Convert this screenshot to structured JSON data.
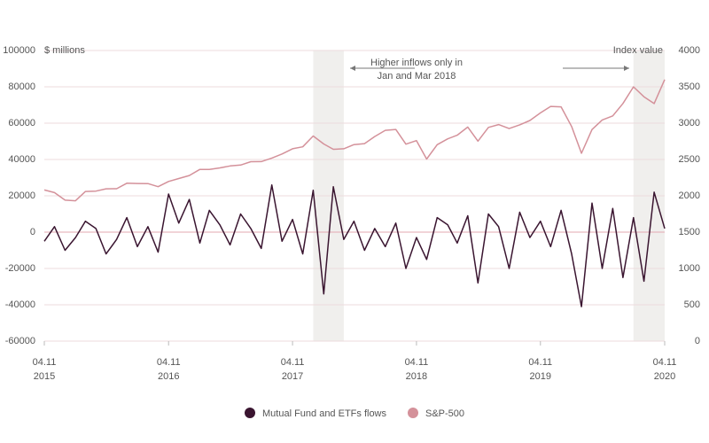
{
  "chart_data": {
    "type": "line",
    "y_axis_label": "$ millions",
    "y2_axis_label": "Index value",
    "annotation": "Higher inflows only in\nJan and Mar 2018",
    "x": [
      "2015-11-04",
      "2015-12-04",
      "2016-01-04",
      "2016-02-04",
      "2016-03-04",
      "2016-04-04",
      "2016-05-04",
      "2016-06-04",
      "2016-07-04",
      "2016-08-04",
      "2016-09-04",
      "2016-10-04",
      "2016-11-04",
      "2016-12-04",
      "2017-01-04",
      "2017-02-04",
      "2017-03-04",
      "2017-04-04",
      "2017-05-04",
      "2017-06-04",
      "2017-07-04",
      "2017-08-04",
      "2017-09-04",
      "2017-10-04",
      "2017-11-04",
      "2017-12-04",
      "2018-01-04",
      "2018-02-04",
      "2018-03-04",
      "2018-04-04",
      "2018-05-04",
      "2018-06-04",
      "2018-07-04",
      "2018-08-04",
      "2018-09-04",
      "2018-10-04",
      "2018-11-04",
      "2018-12-04",
      "2019-01-04",
      "2019-02-04",
      "2019-03-04",
      "2019-04-04",
      "2019-05-04",
      "2019-06-04",
      "2019-07-04",
      "2019-08-04",
      "2019-09-04",
      "2019-10-04",
      "2019-11-04",
      "2019-12-04",
      "2020-01-04",
      "2020-02-04",
      "2020-03-04",
      "2020-04-04",
      "2020-05-04",
      "2020-06-04",
      "2020-07-04",
      "2020-08-04",
      "2020-09-04",
      "2020-10-04",
      "2020-11-04"
    ],
    "series": [
      {
        "name": "Mutual Fund and ETFs flows",
        "color": "#3a1530",
        "values": [
          -5000,
          3000,
          -10000,
          -3000,
          6000,
          2000,
          -12000,
          -4000,
          8000,
          -8000,
          3000,
          -11000,
          21000,
          5000,
          18000,
          -6000,
          12000,
          4000,
          -7000,
          10000,
          2000,
          -9000,
          26000,
          -5000,
          7000,
          -12000,
          23000,
          -34000,
          25000,
          -4000,
          6000,
          -10000,
          2000,
          -8000,
          5000,
          -20000,
          -3000,
          -15000,
          8000,
          4000,
          -6000,
          9000,
          -28000,
          10000,
          3000,
          -20000,
          11000,
          -3000,
          6000,
          -8000,
          12000,
          -12000,
          -41000,
          16000,
          -20000,
          13000,
          -25000,
          8000,
          -27000,
          22000,
          2000
        ]
      },
      {
        "name": "S&P-500",
        "color": "#d4919a",
        "axis": "y2",
        "values": [
          2080,
          2044,
          1940,
          1932,
          2060,
          2065,
          2096,
          2098,
          2173,
          2170,
          2168,
          2126,
          2198,
          2238,
          2279,
          2363,
          2362,
          2384,
          2411,
          2423,
          2470,
          2471,
          2519,
          2575,
          2647,
          2674,
          2823,
          2714,
          2640,
          2648,
          2705,
          2718,
          2816,
          2901,
          2914,
          2711,
          2760,
          2506,
          2704,
          2784,
          2834,
          2946,
          2752,
          2942,
          2980,
          2926,
          2977,
          3037,
          3141,
          3230,
          3225,
          2954,
          2585,
          2912,
          3044,
          3100,
          3271,
          3500,
          3363,
          3270,
          3600
        ]
      }
    ],
    "highlights": [
      [
        "2018-01-04",
        "2018-04-04"
      ],
      [
        "2020-08-04",
        "2020-11-04"
      ]
    ],
    "xlim": [
      "2015-11-04",
      "2020-11-04"
    ],
    "xticks": [
      {
        "value": "2015-11-04",
        "label": "04.11\n2015"
      },
      {
        "value": "2016-11-04",
        "label": "04.11\n2016"
      },
      {
        "value": "2017-11-04",
        "label": "04.11\n2017"
      },
      {
        "value": "2018-11-04",
        "label": "04.11\n2018"
      },
      {
        "value": "2019-11-04",
        "label": "04.11\n2019"
      },
      {
        "value": "2020-11-04",
        "label": "04.11\n2020"
      }
    ],
    "ylim": [
      -60000,
      100000
    ],
    "yticks": [
      -60000,
      -40000,
      -20000,
      0,
      20000,
      40000,
      60000,
      80000,
      100000
    ],
    "y2lim": [
      0,
      4000
    ],
    "y2ticks": [
      0,
      500,
      1000,
      1500,
      2000,
      2500,
      3000,
      3500,
      4000
    ],
    "grid": true
  }
}
